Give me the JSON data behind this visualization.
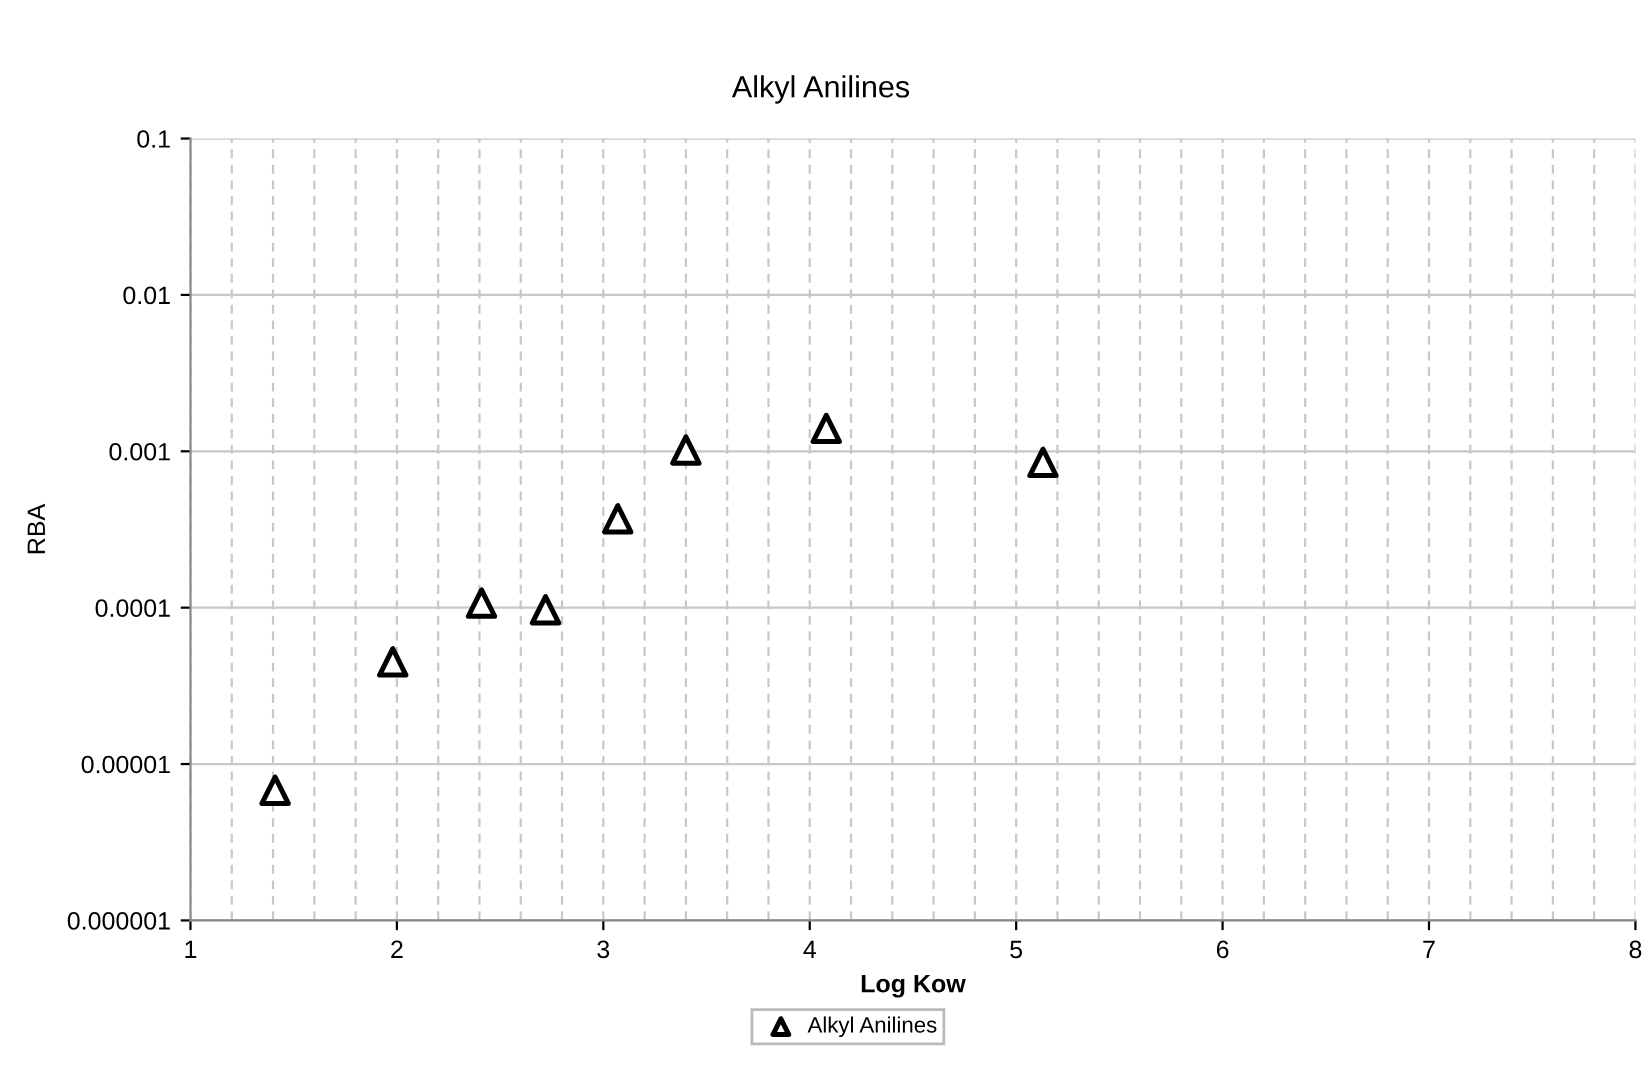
{
  "chart_data": {
    "type": "scatter",
    "title": "Alkyl Anilines",
    "xlabel": "Log Kow",
    "ylabel": "RBA",
    "log": "y",
    "grid": true,
    "legend": "bottom",
    "marker": "triangle",
    "xlim": [
      1,
      8
    ],
    "xticks": [
      1,
      2,
      3,
      4,
      5,
      6,
      7,
      8
    ],
    "ylim": [
      1e-06,
      0.1
    ],
    "yticks": [
      {
        "value": 1e-06,
        "label": "0.000001"
      },
      {
        "value": 1e-05,
        "label": "0.00001"
      },
      {
        "value": 0.0001,
        "label": "0.0001"
      },
      {
        "value": 0.001,
        "label": "0.001"
      },
      {
        "value": 0.01,
        "label": "0.01"
      },
      {
        "value": 0.1,
        "label": "0.1"
      }
    ],
    "series": [
      {
        "name": "Alkyl Anilines",
        "color": "#000000",
        "x": [
          1.41,
          1.98,
          2.41,
          2.72,
          3.07,
          3.4,
          4.08,
          5.13
        ],
        "values": [
          6.8e-06,
          4.5e-05,
          0.000107,
          9.7e-05,
          0.00037,
          0.00102,
          0.0014,
          0.00085
        ]
      }
    ]
  }
}
